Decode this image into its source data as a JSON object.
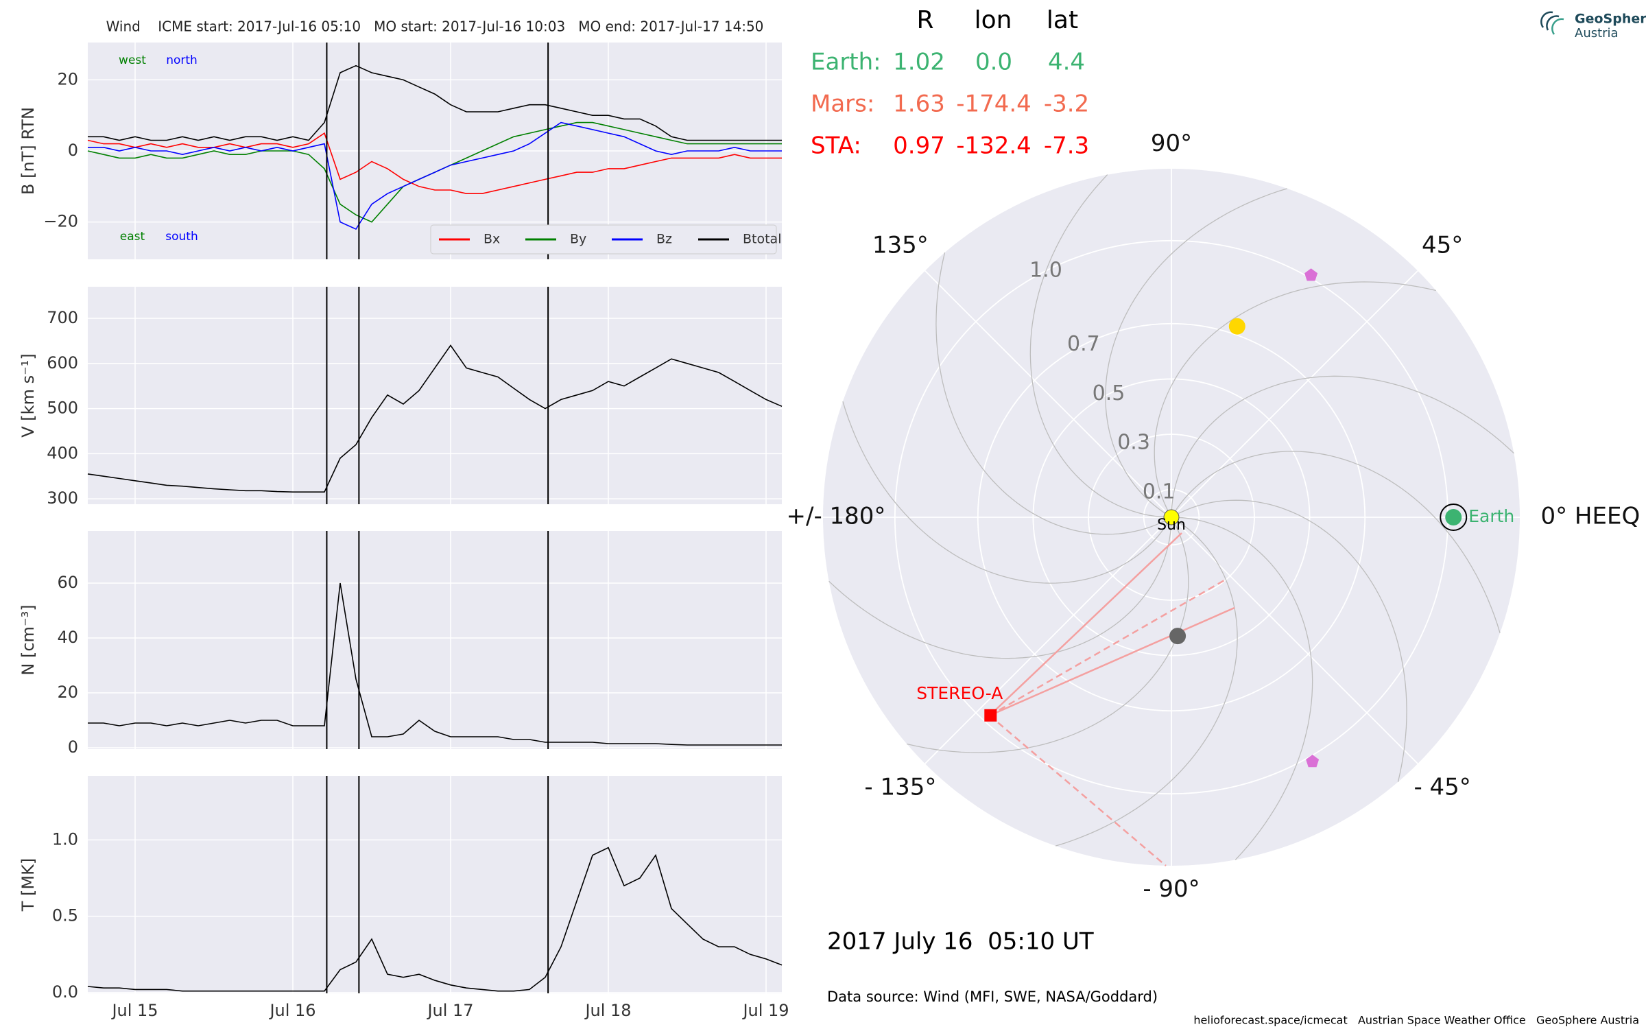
{
  "chart_data": [
    {
      "type": "line",
      "title": "Wind    ICME start: 2017-Jul-16 05:10   MO start: 2017-Jul-16 10:03   MO end: 2017-Jul-17 14:50",
      "ylabel": "B [nT] RTN",
      "x": [
        14.7,
        14.8,
        14.9,
        15.0,
        15.1,
        15.2,
        15.3,
        15.4,
        15.5,
        15.6,
        15.7,
        15.8,
        15.9,
        16.0,
        16.1,
        16.2,
        16.3,
        16.4,
        16.5,
        16.6,
        16.7,
        16.8,
        16.9,
        17.0,
        17.1,
        17.2,
        17.3,
        17.4,
        17.5,
        17.6,
        17.7,
        17.8,
        17.9,
        18.0,
        18.1,
        18.2,
        18.3,
        18.4,
        18.5,
        18.6,
        18.7,
        18.8,
        18.9,
        19.0,
        19.1
      ],
      "series": [
        {
          "name": "Bx",
          "color": "#ff0000",
          "values": [
            3,
            2,
            2,
            1,
            2,
            1,
            2,
            1,
            1,
            2,
            1,
            2,
            2,
            1,
            2,
            5,
            -8,
            -6,
            -3,
            -5,
            -8,
            -10,
            -11,
            -11,
            -12,
            -12,
            -11,
            -10,
            -9,
            -8,
            -7,
            -6,
            -6,
            -5,
            -5,
            -4,
            -3,
            -2,
            -2,
            -2,
            -2,
            -1,
            -2,
            -2,
            -2
          ]
        },
        {
          "name": "By",
          "color": "#008000",
          "values": [
            0,
            -1,
            -2,
            -2,
            -1,
            -2,
            -2,
            -1,
            0,
            -1,
            -1,
            0,
            0,
            0,
            -1,
            -5,
            -15,
            -18,
            -20,
            -15,
            -10,
            -8,
            -6,
            -4,
            -2,
            0,
            2,
            4,
            5,
            6,
            7,
            8,
            8,
            7,
            6,
            5,
            4,
            3,
            2,
            2,
            2,
            2,
            2,
            2,
            2
          ]
        },
        {
          "name": "Bz",
          "color": "#0000ff",
          "values": [
            1,
            1,
            0,
            1,
            0,
            0,
            -1,
            0,
            1,
            0,
            1,
            0,
            1,
            0,
            1,
            2,
            -20,
            -22,
            -15,
            -12,
            -10,
            -8,
            -6,
            -4,
            -3,
            -2,
            -1,
            0,
            2,
            5,
            8,
            7,
            6,
            5,
            4,
            2,
            0,
            -1,
            0,
            0,
            0,
            1,
            0,
            0,
            0
          ]
        },
        {
          "name": "Btotal",
          "color": "#000000",
          "values": [
            4,
            4,
            3,
            4,
            3,
            3,
            4,
            3,
            4,
            3,
            4,
            4,
            3,
            4,
            3,
            8,
            22,
            24,
            22,
            21,
            20,
            18,
            16,
            13,
            11,
            11,
            11,
            12,
            13,
            13,
            12,
            11,
            10,
            10,
            9,
            9,
            7,
            4,
            3,
            3,
            3,
            3,
            3,
            3,
            3
          ]
        }
      ],
      "xlim": [
        14.7,
        19.1
      ],
      "xticks": [
        15,
        16,
        17,
        18,
        19
      ],
      "ylim": [
        -30.5,
        30.5
      ],
      "yticks": [
        {
          "value": -20,
          "label": "−20"
        },
        0,
        20
      ],
      "vlines": [
        16.215,
        16.419,
        17.618
      ],
      "grid": true,
      "legend": "lower right",
      "annotations": [
        {
          "text": "west",
          "color": "#008000"
        },
        {
          "text": "north",
          "color": "#0000ff"
        },
        {
          "text": "east",
          "color": "#008000"
        },
        {
          "text": "south",
          "color": "#0000ff"
        }
      ]
    },
    {
      "type": "line",
      "ylabel": "V [km s⁻¹]",
      "x": [
        14.7,
        14.8,
        14.9,
        15.0,
        15.1,
        15.2,
        15.3,
        15.4,
        15.5,
        15.6,
        15.7,
        15.8,
        15.9,
        16.0,
        16.1,
        16.2,
        16.3,
        16.4,
        16.5,
        16.6,
        16.7,
        16.8,
        16.9,
        17.0,
        17.1,
        17.2,
        17.3,
        17.4,
        17.5,
        17.6,
        17.7,
        17.8,
        17.9,
        18.0,
        18.1,
        18.2,
        18.3,
        18.4,
        18.5,
        18.6,
        18.7,
        18.8,
        18.9,
        19.0,
        19.1
      ],
      "series": [
        {
          "color": "#000000",
          "values": [
            355,
            350,
            345,
            340,
            335,
            330,
            328,
            325,
            322,
            320,
            318,
            318,
            316,
            315,
            315,
            315,
            390,
            420,
            480,
            530,
            510,
            540,
            590,
            640,
            590,
            580,
            570,
            545,
            520,
            500,
            520,
            530,
            540,
            560,
            550,
            570,
            590,
            610,
            600,
            590,
            580,
            560,
            540,
            520,
            505
          ]
        }
      ],
      "xlim": [
        14.7,
        19.1
      ],
      "xticks": [
        15,
        16,
        17,
        18,
        19
      ],
      "ylim": [
        288,
        770
      ],
      "yticks": [
        300,
        400,
        500,
        600,
        700
      ],
      "vlines": [
        16.215,
        16.419,
        17.618
      ],
      "grid": true
    },
    {
      "type": "line",
      "ylabel": "N [cm⁻³]",
      "x": [
        14.7,
        14.8,
        14.9,
        15.0,
        15.1,
        15.2,
        15.3,
        15.4,
        15.5,
        15.6,
        15.7,
        15.8,
        15.9,
        16.0,
        16.1,
        16.2,
        16.3,
        16.4,
        16.5,
        16.6,
        16.7,
        16.8,
        16.9,
        17.0,
        17.1,
        17.2,
        17.3,
        17.4,
        17.5,
        17.6,
        17.7,
        17.8,
        17.9,
        18.0,
        18.1,
        18.2,
        18.3,
        18.4,
        18.5,
        18.6,
        18.7,
        18.8,
        18.9,
        19.0,
        19.1
      ],
      "series": [
        {
          "color": "#000000",
          "values": [
            9,
            9,
            8,
            9,
            9,
            8,
            9,
            8,
            9,
            10,
            9,
            10,
            10,
            8,
            8,
            8,
            60,
            25,
            4,
            4,
            5,
            10,
            6,
            4,
            4,
            4,
            4,
            3,
            3,
            2,
            2,
            2,
            2,
            1.5,
            1.5,
            1.5,
            1.5,
            1.2,
            1,
            1,
            1,
            1,
            1,
            1,
            1
          ]
        }
      ],
      "xlim": [
        14.7,
        19.1
      ],
      "xticks": [
        15,
        16,
        17,
        18,
        19
      ],
      "ylim": [
        -0.5,
        79
      ],
      "yticks": [
        0,
        20,
        40,
        60
      ],
      "vlines": [
        16.215,
        16.419,
        17.618
      ],
      "grid": true
    },
    {
      "type": "line",
      "ylabel": "T [MK]",
      "x": [
        14.7,
        14.8,
        14.9,
        15.0,
        15.1,
        15.2,
        15.3,
        15.4,
        15.5,
        15.6,
        15.7,
        15.8,
        15.9,
        16.0,
        16.1,
        16.2,
        16.3,
        16.4,
        16.5,
        16.6,
        16.7,
        16.8,
        16.9,
        17.0,
        17.1,
        17.2,
        17.3,
        17.4,
        17.5,
        17.6,
        17.7,
        17.8,
        17.9,
        18.0,
        18.1,
        18.2,
        18.3,
        18.4,
        18.5,
        18.6,
        18.7,
        18.8,
        18.9,
        19.0,
        19.1
      ],
      "series": [
        {
          "color": "#000000",
          "values": [
            0.04,
            0.03,
            0.03,
            0.02,
            0.02,
            0.02,
            0.01,
            0.01,
            0.01,
            0.01,
            0.01,
            0.01,
            0.01,
            0.01,
            0.01,
            0.01,
            0.15,
            0.2,
            0.35,
            0.12,
            0.1,
            0.12,
            0.08,
            0.05,
            0.03,
            0.02,
            0.01,
            0.01,
            0.02,
            0.1,
            0.3,
            0.6,
            0.9,
            0.95,
            0.7,
            0.75,
            0.9,
            0.55,
            0.45,
            0.35,
            0.3,
            0.3,
            0.25,
            0.22,
            0.18
          ]
        }
      ],
      "xlim": [
        14.7,
        19.1
      ],
      "xticks": [
        {
          "value": 15,
          "label": "Jul 15"
        },
        {
          "value": 16,
          "label": "Jul 16"
        },
        {
          "value": 17,
          "label": "Jul 17"
        },
        {
          "value": 18,
          "label": "Jul 18"
        },
        {
          "value": 19,
          "label": "Jul 19"
        }
      ],
      "ylim": [
        -0.005,
        1.42
      ],
      "yticks": [
        {
          "value": 0,
          "label": "0.0"
        },
        0.5,
        {
          "value": 1,
          "label": "1.0"
        }
      ],
      "vlines": [
        16.215,
        16.419,
        17.618
      ],
      "grid": true
    },
    {
      "type": "polar",
      "columns": [
        "R",
        "lon",
        "lat"
      ],
      "bodies": [
        {
          "name": "Earth:",
          "label": "Earth",
          "r": 1.02,
          "lon": 0.0,
          "lon_label": "0.0",
          "lat": 4.4,
          "color": "#3cb371",
          "marker": "o"
        },
        {
          "name": "Mars:",
          "r": 1.63,
          "lon": -174.4,
          "lat": -3.2,
          "color": "#f26a4f",
          "marker": "o"
        },
        {
          "name": "STA:",
          "label": "STEREO-A",
          "r": 0.97,
          "lon": -132.4,
          "lat": -7.3,
          "color": "#ff0000",
          "marker": "s"
        }
      ],
      "markers": [
        {
          "r": 0.73,
          "lon": 71,
          "color": "#ffd700",
          "marker": "o"
        },
        {
          "r": 0.43,
          "lon": -87,
          "color": "#666666",
          "marker": "o"
        },
        {
          "r": 1.01,
          "lon": 60,
          "color": "#da70d6",
          "marker": "p"
        },
        {
          "r": 1.02,
          "lon": -60,
          "color": "#da70d6",
          "marker": "p"
        }
      ],
      "sun_label": "Sun",
      "rlim": [
        0,
        1.26
      ],
      "rticks": [
        0.1,
        0.3,
        0.5,
        0.7,
        {
          "value": 1,
          "label": "1.0"
        }
      ],
      "thetaticks": [
        {
          "value": 0,
          "label": "0° HEEQ"
        },
        {
          "value": 45,
          "label": "45°"
        },
        {
          "value": 90,
          "label": "90°"
        },
        {
          "value": 135,
          "label": "135°"
        },
        {
          "value": 180,
          "label": "+/- 180°"
        },
        {
          "value": -135,
          "label": "- 135°"
        },
        {
          "value": -90,
          "label": "- 90°"
        },
        {
          "value": -45,
          "label": "- 45°"
        }
      ],
      "date": "2017 July 16  05:10 UT",
      "source": "Data source: Wind (MFI, SWE, NASA/Goddard)"
    }
  ],
  "footer": "helioforecast.space/icmecat   Austrian Space Weather Office   GeoSphere Austria",
  "logo": {
    "name": "GeoSphere",
    "sub": "Austria"
  }
}
